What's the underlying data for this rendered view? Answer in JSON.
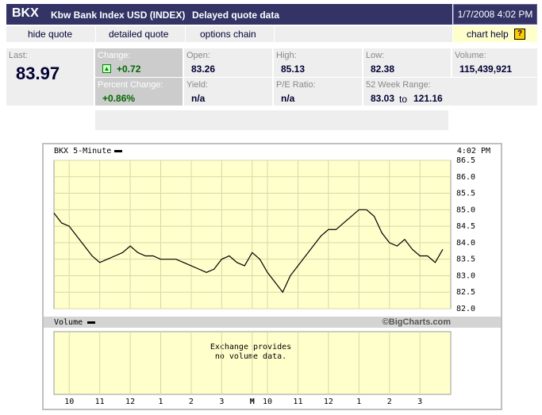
{
  "header": {
    "symbol": "BKX",
    "name": "Kbw Bank Index USD (INDEX)",
    "note": "Delayed quote data",
    "datetime": "1/7/2008 4:02 PM"
  },
  "nav": {
    "items": [
      "hide quote",
      "detailed quote",
      "options chain"
    ],
    "help": "chart help",
    "help_icon": "?"
  },
  "quote": {
    "last": {
      "label": "Last:",
      "value": "83.97"
    },
    "change": {
      "label": "Change:",
      "value": "+0.72"
    },
    "open": {
      "label": "Open:",
      "value": "83.26"
    },
    "high": {
      "label": "High:",
      "value": "85.13"
    },
    "low": {
      "label": "Low:",
      "value": "82.38"
    },
    "volume": {
      "label": "Volume:",
      "value": "115,439,921"
    },
    "percent_change": {
      "label": "Percent Change:",
      "value": "+0.86%"
    },
    "yield": {
      "label": "Yield:",
      "value": "n/a"
    },
    "pe": {
      "label": "P/E Ratio:",
      "value": "n/a"
    },
    "range": {
      "label": "52 Week Range:",
      "low": "83.03",
      "sep": "to",
      "high": "121.16"
    }
  },
  "chart_data": {
    "type": "line",
    "title": "BKX 5-Minute",
    "time": "4:02 PM",
    "color": "#000000",
    "categories": [
      null,
      null,
      "10",
      null,
      null,
      null,
      "11",
      null,
      null,
      null,
      "12",
      null,
      null,
      null,
      "1",
      null,
      null,
      null,
      "2",
      null,
      null,
      null,
      "3",
      null,
      null,
      null,
      "M",
      null,
      "10",
      null,
      null,
      null,
      "11",
      null,
      null,
      null,
      "12",
      null,
      null,
      null,
      "1",
      null,
      null,
      null,
      "2",
      null,
      null,
      null,
      "3",
      null,
      null,
      null
    ],
    "values": [
      84.9,
      84.6,
      84.5,
      84.2,
      83.9,
      83.6,
      83.4,
      83.5,
      83.6,
      83.7,
      83.9,
      83.7,
      83.6,
      83.6,
      83.5,
      83.5,
      83.5,
      83.4,
      83.3,
      83.2,
      83.1,
      83.2,
      83.5,
      83.6,
      83.4,
      83.3,
      83.7,
      83.5,
      83.1,
      82.8,
      82.5,
      83.0,
      83.3,
      83.6,
      83.9,
      84.2,
      84.4,
      84.4,
      84.6,
      84.8,
      85.0,
      85.0,
      84.8,
      84.3,
      84.0,
      83.9,
      84.1,
      83.8,
      83.6,
      83.6,
      83.4,
      83.8
    ],
    "ylim": [
      82,
      86.5
    ],
    "yticks": [
      {
        "value": 82,
        "label": "82.0"
      },
      82.5,
      {
        "value": 83,
        "label": "83.0"
      },
      83.5,
      {
        "value": 84,
        "label": "84.0"
      },
      84.5,
      {
        "value": 85,
        "label": "85.0"
      },
      85.5,
      {
        "value": 86,
        "label": "86.0"
      },
      86.5
    ],
    "grid": true,
    "volume_label": "Volume",
    "credit": "©BigCharts.com",
    "volume_note": [
      "Exchange provides",
      "no volume data."
    ]
  }
}
